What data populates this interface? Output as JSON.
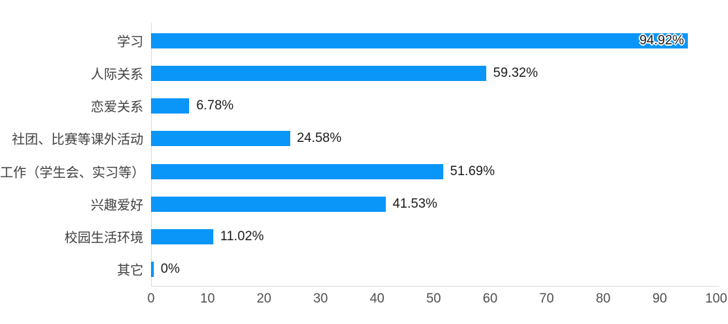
{
  "chart_data": {
    "type": "bar",
    "orientation": "horizontal",
    "title": "",
    "xlabel": "",
    "ylabel": "",
    "categories": [
      "学习",
      "人际关系",
      "恋爱关系",
      "社团、比赛等课外活动",
      "工作（学生会、实习等）",
      "兴趣爱好",
      "校园生活环境",
      "其它"
    ],
    "values": [
      94.92,
      59.32,
      6.78,
      24.58,
      51.69,
      41.53,
      11.02,
      0
    ],
    "value_labels": [
      "94.92%",
      "59.32%",
      "6.78%",
      "24.58%",
      "51.69%",
      "41.53%",
      "11.02%",
      "0%"
    ],
    "x_ticks": [
      "0",
      "10",
      "20",
      "30",
      "40",
      "50",
      "60",
      "70",
      "80",
      "90",
      "100"
    ],
    "xlim": [
      0,
      100
    ],
    "grid": false,
    "legend": false,
    "bar_color": "#0a96f8",
    "axis_line_color": "#d9dbe2",
    "category_label_color": "#3f3f3f",
    "value_label_color": "#1b1b1b",
    "tick_label_color": "#4f4f4f",
    "first_value_label_position": "inside-end"
  }
}
